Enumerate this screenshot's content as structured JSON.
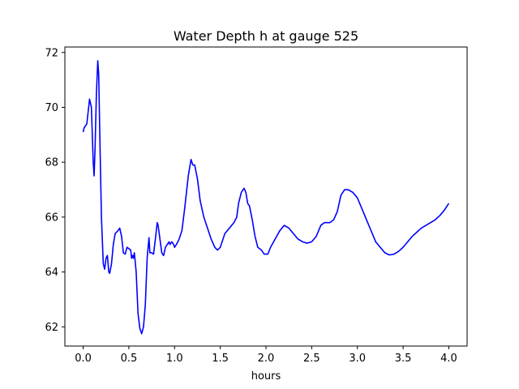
{
  "chart_data": {
    "type": "line",
    "title": "Water Depth h at gauge 525",
    "xlabel": "hours",
    "ylabel": "",
    "xlim": [
      -0.2,
      4.2
    ],
    "ylim": [
      61.3,
      72.2
    ],
    "xticks": [
      0.0,
      0.5,
      1.0,
      1.5,
      2.0,
      2.5,
      3.0,
      3.5,
      4.0
    ],
    "xtick_labels": [
      "0.0",
      "0.5",
      "1.0",
      "1.5",
      "2.0",
      "2.5",
      "3.0",
      "3.5",
      "4.0"
    ],
    "yticks": [
      62,
      64,
      66,
      68,
      70,
      72
    ],
    "ytick_labels": [
      "62",
      "64",
      "66",
      "68",
      "70",
      "72"
    ],
    "grid": false,
    "line_color": "#0000ff",
    "series": [
      {
        "points": [
          [
            0.0,
            69.1
          ],
          [
            0.01,
            69.25
          ],
          [
            0.04,
            69.4
          ],
          [
            0.06,
            70.0
          ],
          [
            0.07,
            70.3
          ],
          [
            0.09,
            70.0
          ],
          [
            0.11,
            68.0
          ],
          [
            0.12,
            67.5
          ],
          [
            0.13,
            68.5
          ],
          [
            0.145,
            70.5
          ],
          [
            0.16,
            71.7
          ],
          [
            0.17,
            71.2
          ],
          [
            0.185,
            68.5
          ],
          [
            0.2,
            66.0
          ],
          [
            0.22,
            64.3
          ],
          [
            0.235,
            64.1
          ],
          [
            0.25,
            64.5
          ],
          [
            0.265,
            64.6
          ],
          [
            0.28,
            64.0
          ],
          [
            0.29,
            63.95
          ],
          [
            0.31,
            64.3
          ],
          [
            0.33,
            65.0
          ],
          [
            0.35,
            65.4
          ],
          [
            0.38,
            65.5
          ],
          [
            0.4,
            65.6
          ],
          [
            0.42,
            65.3
          ],
          [
            0.44,
            64.7
          ],
          [
            0.46,
            64.65
          ],
          [
            0.48,
            64.9
          ],
          [
            0.5,
            64.85
          ],
          [
            0.52,
            64.8
          ],
          [
            0.53,
            64.5
          ],
          [
            0.54,
            64.6
          ],
          [
            0.55,
            64.5
          ],
          [
            0.56,
            64.7
          ],
          [
            0.58,
            64.0
          ],
          [
            0.6,
            62.5
          ],
          [
            0.62,
            61.95
          ],
          [
            0.64,
            61.75
          ],
          [
            0.66,
            62.0
          ],
          [
            0.68,
            62.8
          ],
          [
            0.7,
            64.5
          ],
          [
            0.72,
            65.25
          ],
          [
            0.73,
            64.7
          ],
          [
            0.75,
            64.7
          ],
          [
            0.77,
            64.65
          ],
          [
            0.79,
            65.2
          ],
          [
            0.81,
            65.8
          ],
          [
            0.82,
            65.7
          ],
          [
            0.84,
            65.2
          ],
          [
            0.86,
            64.7
          ],
          [
            0.88,
            64.6
          ],
          [
            0.9,
            64.9
          ],
          [
            0.92,
            65.0
          ],
          [
            0.94,
            65.1
          ],
          [
            0.95,
            65.0
          ],
          [
            0.97,
            65.1
          ],
          [
            0.99,
            65.0
          ],
          [
            1.0,
            64.9
          ],
          [
            1.02,
            65.0
          ],
          [
            1.05,
            65.2
          ],
          [
            1.08,
            65.5
          ],
          [
            1.11,
            66.3
          ],
          [
            1.15,
            67.5
          ],
          [
            1.18,
            68.1
          ],
          [
            1.2,
            67.9
          ],
          [
            1.22,
            67.9
          ],
          [
            1.25,
            67.4
          ],
          [
            1.28,
            66.6
          ],
          [
            1.32,
            66.0
          ],
          [
            1.36,
            65.6
          ],
          [
            1.4,
            65.2
          ],
          [
            1.44,
            64.9
          ],
          [
            1.47,
            64.8
          ],
          [
            1.5,
            64.9
          ],
          [
            1.55,
            65.4
          ],
          [
            1.6,
            65.6
          ],
          [
            1.65,
            65.8
          ],
          [
            1.68,
            66.0
          ],
          [
            1.7,
            66.5
          ],
          [
            1.73,
            66.9
          ],
          [
            1.76,
            67.05
          ],
          [
            1.78,
            66.9
          ],
          [
            1.8,
            66.5
          ],
          [
            1.82,
            66.4
          ],
          [
            1.85,
            65.9
          ],
          [
            1.88,
            65.3
          ],
          [
            1.91,
            64.9
          ],
          [
            1.95,
            64.8
          ],
          [
            1.98,
            64.65
          ],
          [
            2.02,
            64.65
          ],
          [
            2.05,
            64.9
          ],
          [
            2.1,
            65.2
          ],
          [
            2.15,
            65.5
          ],
          [
            2.2,
            65.7
          ],
          [
            2.25,
            65.6
          ],
          [
            2.3,
            65.4
          ],
          [
            2.35,
            65.2
          ],
          [
            2.4,
            65.1
          ],
          [
            2.45,
            65.05
          ],
          [
            2.5,
            65.1
          ],
          [
            2.55,
            65.3
          ],
          [
            2.6,
            65.7
          ],
          [
            2.64,
            65.8
          ],
          [
            2.7,
            65.8
          ],
          [
            2.74,
            65.9
          ],
          [
            2.78,
            66.2
          ],
          [
            2.82,
            66.8
          ],
          [
            2.86,
            67.0
          ],
          [
            2.9,
            67.0
          ],
          [
            2.95,
            66.9
          ],
          [
            3.0,
            66.7
          ],
          [
            3.05,
            66.3
          ],
          [
            3.1,
            65.9
          ],
          [
            3.15,
            65.5
          ],
          [
            3.2,
            65.1
          ],
          [
            3.25,
            64.9
          ],
          [
            3.3,
            64.7
          ],
          [
            3.35,
            64.62
          ],
          [
            3.4,
            64.65
          ],
          [
            3.45,
            64.75
          ],
          [
            3.5,
            64.9
          ],
          [
            3.55,
            65.1
          ],
          [
            3.6,
            65.3
          ],
          [
            3.65,
            65.45
          ],
          [
            3.7,
            65.6
          ],
          [
            3.75,
            65.7
          ],
          [
            3.8,
            65.8
          ],
          [
            3.85,
            65.9
          ],
          [
            3.9,
            66.05
          ],
          [
            3.95,
            66.25
          ],
          [
            4.0,
            66.5
          ]
        ]
      }
    ]
  }
}
